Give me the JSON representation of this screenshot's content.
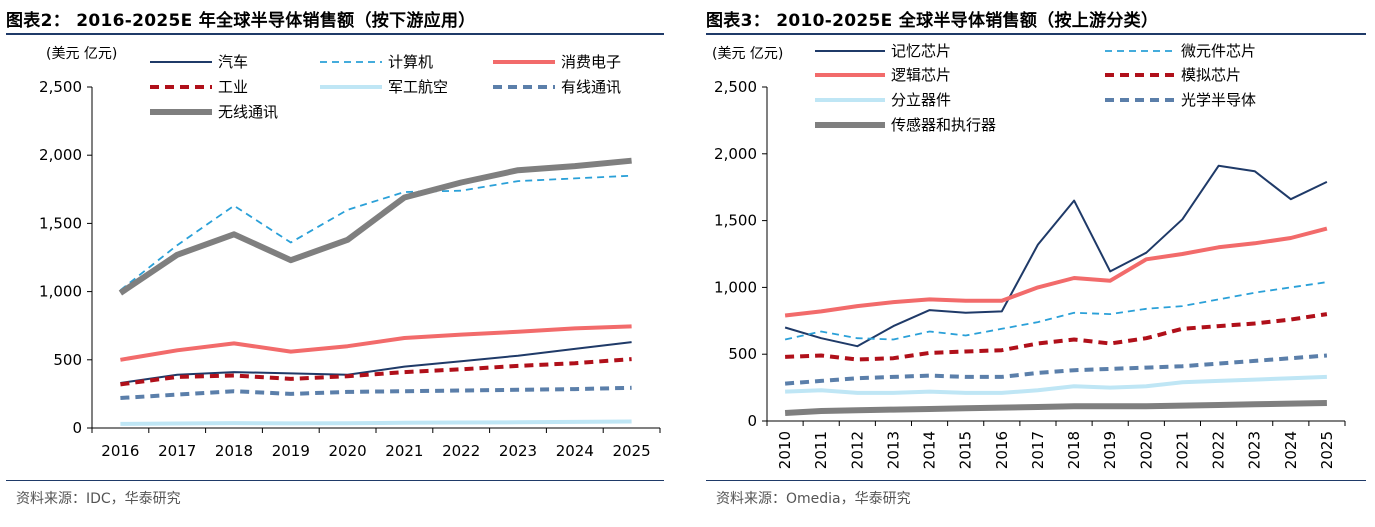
{
  "charts": [
    {
      "title": "图表2：  2016-2025E 年全球半导体销售额（按下游应用）",
      "source": "资料来源：IDC，华泰研究",
      "chart_data": {
        "type": "line",
        "ylabel": "(美元 亿元)",
        "ylim": [
          0,
          2500
        ],
        "yticks": [
          0,
          500,
          1000,
          1500,
          2000,
          2500
        ],
        "ytick_labels": [
          "0",
          "500",
          "1,000",
          "1,500",
          "2,000",
          "2,500"
        ],
        "categories": [
          "2016",
          "2017",
          "2018",
          "2019",
          "2020",
          "2021",
          "2022",
          "2023",
          "2024",
          "2025"
        ],
        "legend_position": "top",
        "grid": false,
        "series": [
          {
            "name": "汽车",
            "color": "#1f3a68",
            "style": "solid-thin",
            "values": [
              330,
              390,
              410,
              400,
              390,
              450,
              490,
              530,
              580,
              630
            ]
          },
          {
            "name": "计算机",
            "color": "#2aa0d8",
            "style": "dash-thin",
            "values": [
              1010,
              1340,
              1630,
              1360,
              1600,
              1730,
              1740,
              1810,
              1830,
              1850
            ]
          },
          {
            "name": "消费电子",
            "color": "#f26b6b",
            "style": "solid-thick",
            "values": [
              500,
              570,
              620,
              560,
              600,
              660,
              685,
              705,
              730,
              745
            ]
          },
          {
            "name": "工业",
            "color": "#b0101a",
            "style": "dash-thick",
            "values": [
              320,
              375,
              385,
              360,
              380,
              410,
              430,
              455,
              475,
              505
            ]
          },
          {
            "name": "军工航空",
            "color": "#bfe6f5",
            "style": "solid-thick",
            "values": [
              30,
              33,
              36,
              34,
              35,
              38,
              40,
              42,
              45,
              48
            ]
          },
          {
            "name": "有线通讯",
            "color": "#5b7faa",
            "style": "dash-thick",
            "values": [
              220,
              245,
              270,
              250,
              265,
              270,
              275,
              280,
              285,
              295
            ]
          },
          {
            "name": "无线通讯",
            "color": "#7f7f7f",
            "style": "solid-xthick",
            "values": [
              990,
              1270,
              1420,
              1230,
              1380,
              1690,
              1800,
              1890,
              1920,
              1960
            ]
          }
        ]
      }
    },
    {
      "title": "图表3：  2010-2025E 全球半导体销售额（按上游分类）",
      "source": "资料来源：Omedia，华泰研究",
      "chart_data": {
        "type": "line",
        "ylabel": "(美元 亿元)",
        "ylim": [
          0,
          2500
        ],
        "yticks": [
          0,
          500,
          1000,
          1500,
          2000,
          2500
        ],
        "ytick_labels": [
          "0",
          "500",
          "1,000",
          "1,500",
          "2,000",
          "2,500"
        ],
        "categories": [
          "2010",
          "2011",
          "2012",
          "2013",
          "2014",
          "2015",
          "2016",
          "2017",
          "2018",
          "2019",
          "2020",
          "2021",
          "2022",
          "2023",
          "2024",
          "2025"
        ],
        "legend_position": "top",
        "grid": false,
        "series": [
          {
            "name": "记忆芯片",
            "color": "#1f3a68",
            "style": "solid-thin",
            "values": [
              700,
              620,
              560,
              710,
              830,
              810,
              820,
              1320,
              1650,
              1120,
              1260,
              1510,
              1910,
              1870,
              1660,
              1790
            ]
          },
          {
            "name": "微元件芯片",
            "color": "#2aa0d8",
            "style": "dash-thin",
            "values": [
              610,
              670,
              620,
              610,
              670,
              640,
              690,
              740,
              810,
              800,
              840,
              860,
              910,
              960,
              1000,
              1040
            ]
          },
          {
            "name": "逻辑芯片",
            "color": "#f26b6b",
            "style": "solid-thick",
            "values": [
              790,
              820,
              860,
              890,
              910,
              900,
              900,
              1000,
              1070,
              1050,
              1210,
              1250,
              1300,
              1330,
              1370,
              1440
            ]
          },
          {
            "name": "模拟芯片",
            "color": "#b0101a",
            "style": "dash-thick",
            "values": [
              480,
              490,
              460,
              470,
              510,
              520,
              530,
              580,
              610,
              580,
              620,
              690,
              710,
              730,
              760,
              800
            ]
          },
          {
            "name": "分立器件",
            "color": "#bfe6f5",
            "style": "solid-thick",
            "values": [
              220,
              230,
              210,
              210,
              220,
              210,
              210,
              230,
              260,
              250,
              260,
              290,
              300,
              310,
              320,
              330
            ]
          },
          {
            "name": "光学半导体",
            "color": "#5b7faa",
            "style": "dash-thick",
            "values": [
              280,
              300,
              320,
              330,
              340,
              330,
              330,
              360,
              380,
              390,
              400,
              410,
              430,
              450,
              470,
              490
            ]
          },
          {
            "name": "传感器和执行器",
            "color": "#7f7f7f",
            "style": "solid-xthick",
            "values": [
              60,
              75,
              80,
              85,
              90,
              95,
              100,
              105,
              110,
              110,
              110,
              115,
              120,
              125,
              130,
              135
            ]
          }
        ]
      }
    }
  ]
}
